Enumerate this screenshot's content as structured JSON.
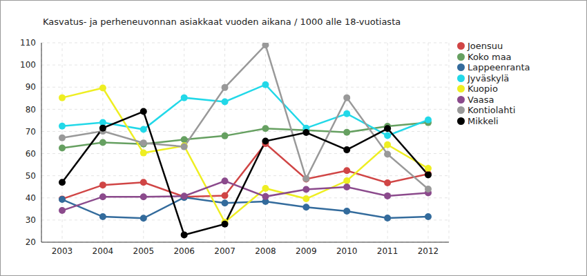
{
  "chart_data": {
    "type": "line",
    "title": "Kasvatus- ja perheneuvonnan asiakkaat vuoden aikana / 1000 alle 18-vuotiasta",
    "categories": [
      "2003",
      "2004",
      "2005",
      "2006",
      "2007",
      "2008",
      "2009",
      "2010",
      "2011",
      "2012"
    ],
    "series": [
      {
        "name": "Joensuu",
        "color": "#d04545",
        "values": [
          39.5,
          45.8,
          47,
          40.5,
          41,
          64.5,
          48.5,
          52.3,
          46.8,
          50.8
        ]
      },
      {
        "name": "Koko maa",
        "color": "#66a061",
        "values": [
          62.5,
          65,
          64.3,
          66.3,
          68,
          71.3,
          70.5,
          69.6,
          72.3,
          74
        ]
      },
      {
        "name": "Lappeenranta",
        "color": "#336b9c",
        "values": [
          39.3,
          31.5,
          30.8,
          40.2,
          37.7,
          38.4,
          35.8,
          34,
          30.9,
          31.5
        ]
      },
      {
        "name": "Jyväskylä",
        "color": "#22d8e8",
        "values": [
          72.4,
          74,
          70.9,
          85.2,
          83.4,
          91.1,
          71.5,
          78,
          68.1,
          75.2
        ]
      },
      {
        "name": "Kuopio",
        "color": "#eeee22",
        "values": [
          85.2,
          89.6,
          60.3,
          63.5,
          29,
          44.3,
          39.6,
          47.7,
          64,
          53.3
        ]
      },
      {
        "name": "Vaasa",
        "color": "#8b4a8c",
        "values": [
          34.3,
          40.5,
          40.5,
          40.8,
          47.6,
          40.6,
          43.8,
          44.9,
          40.9,
          42.3
        ]
      },
      {
        "name": "Kontiolahti",
        "color": "#999999",
        "values": [
          67.1,
          70.1,
          64.8,
          63.1,
          89.8,
          109,
          48.7,
          85.2,
          59.7,
          44
        ]
      },
      {
        "name": "Mikkeli",
        "color": "#000000",
        "values": [
          47,
          71.5,
          79,
          23.3,
          28.2,
          65.6,
          69.5,
          61.7,
          71.3,
          50.4
        ]
      }
    ],
    "ylim": [
      20,
      110
    ],
    "yticks": [
      20,
      30,
      40,
      50,
      60,
      70,
      80,
      90,
      100,
      110
    ],
    "grid": true,
    "legend": "top right",
    "marker": "circle"
  }
}
